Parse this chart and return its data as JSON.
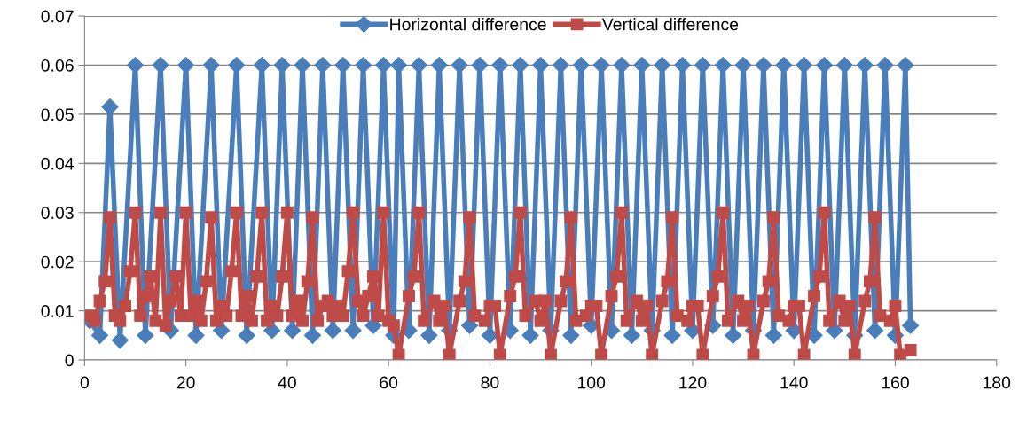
{
  "chart_data": {
    "type": "line",
    "xlim": [
      0,
      180
    ],
    "xticks": [
      0,
      20,
      40,
      60,
      80,
      100,
      120,
      140,
      160,
      180
    ],
    "ylim": [
      0,
      0.07
    ],
    "yticks": [
      0,
      0.01,
      0.02,
      0.03,
      0.04,
      0.05,
      0.06,
      0.07
    ],
    "grid": "y",
    "legend": "top",
    "line_style": "solid",
    "series": [
      {
        "name": "Horizontal difference",
        "color": "#4a7ebb",
        "marker": "diamond",
        "x": [
          1,
          3,
          5,
          7,
          10,
          12,
          15,
          17,
          20,
          22,
          25,
          27,
          30,
          32,
          35,
          37,
          39,
          41,
          43,
          45,
          47,
          49,
          51,
          53,
          55,
          57,
          59,
          61,
          62,
          64,
          66,
          68,
          70,
          72,
          74,
          76,
          78,
          80,
          82,
          84,
          86,
          88,
          90,
          92,
          94,
          96,
          98,
          100,
          102,
          104,
          106,
          108,
          110,
          112,
          114,
          116,
          118,
          120,
          122,
          124,
          126,
          128,
          130,
          132,
          134,
          136,
          138,
          140,
          142,
          144,
          146,
          148,
          150,
          152,
          154,
          156,
          158,
          160,
          162,
          163
        ],
        "values": [
          0.008,
          0.005,
          0.0515,
          0.004,
          0.06,
          0.005,
          0.06,
          0.006,
          0.06,
          0.005,
          0.06,
          0.006,
          0.06,
          0.005,
          0.06,
          0.006,
          0.06,
          0.006,
          0.06,
          0.005,
          0.06,
          0.006,
          0.06,
          0.006,
          0.06,
          0.007,
          0.06,
          0.005,
          0.06,
          0.006,
          0.06,
          0.005,
          0.06,
          0.006,
          0.06,
          0.007,
          0.06,
          0.005,
          0.06,
          0.006,
          0.06,
          0.005,
          0.06,
          0.006,
          0.06,
          0.005,
          0.06,
          0.007,
          0.06,
          0.006,
          0.06,
          0.005,
          0.06,
          0.006,
          0.06,
          0.005,
          0.06,
          0.006,
          0.06,
          0.007,
          0.06,
          0.005,
          0.06,
          0.006,
          0.06,
          0.005,
          0.06,
          0.006,
          0.06,
          0.005,
          0.06,
          0.006,
          0.06,
          0.005,
          0.06,
          0.006,
          0.06,
          0.005,
          0.06,
          0.007
        ]
      },
      {
        "name": "Vertical difference",
        "color": "#be4b48",
        "marker": "square",
        "x": [
          1,
          2,
          3,
          4,
          5,
          6,
          7,
          8,
          9,
          10,
          11,
          12,
          13,
          14,
          15,
          16,
          17,
          18,
          19,
          20,
          21,
          22,
          23,
          24,
          25,
          26,
          27,
          28,
          29,
          30,
          31,
          32,
          33,
          34,
          35,
          36,
          37,
          38,
          39,
          40,
          41,
          42,
          43,
          44,
          45,
          46,
          47,
          48,
          49,
          50,
          51,
          52,
          53,
          54,
          55,
          56,
          57,
          58,
          59,
          60,
          61,
          62,
          64,
          65,
          66,
          67,
          69,
          70,
          71,
          72,
          74,
          75,
          76,
          77,
          79,
          80,
          81,
          82,
          84,
          85,
          86,
          87,
          89,
          90,
          91,
          92,
          94,
          95,
          96,
          97,
          99,
          100,
          101,
          102,
          104,
          105,
          106,
          107,
          109,
          110,
          111,
          112,
          114,
          115,
          116,
          117,
          119,
          120,
          121,
          122,
          124,
          125,
          126,
          127,
          129,
          130,
          131,
          132,
          134,
          135,
          136,
          137,
          139,
          140,
          141,
          142,
          144,
          145,
          146,
          147,
          149,
          150,
          151,
          152,
          154,
          155,
          156,
          157,
          159,
          160,
          161,
          163
        ],
        "values": [
          0.009,
          0.008,
          0.012,
          0.016,
          0.029,
          0.009,
          0.008,
          0.011,
          0.018,
          0.03,
          0.009,
          0.013,
          0.017,
          0.008,
          0.03,
          0.007,
          0.012,
          0.017,
          0.009,
          0.03,
          0.009,
          0.012,
          0.008,
          0.016,
          0.029,
          0.008,
          0.011,
          0.009,
          0.018,
          0.03,
          0.009,
          0.013,
          0.008,
          0.017,
          0.03,
          0.008,
          0.011,
          0.009,
          0.017,
          0.03,
          0.009,
          0.012,
          0.008,
          0.016,
          0.029,
          0.008,
          0.011,
          0.012,
          0.009,
          0.011,
          0.009,
          0.018,
          0.03,
          0.012,
          0.009,
          0.013,
          0.017,
          0.009,
          0.03,
          0.008,
          0.007,
          0.001,
          0.013,
          0.017,
          0.03,
          0.008,
          0.012,
          0.008,
          0.011,
          0.001,
          0.012,
          0.016,
          0.029,
          0.009,
          0.008,
          0.011,
          0.011,
          0.001,
          0.013,
          0.017,
          0.03,
          0.009,
          0.012,
          0.008,
          0.012,
          0.001,
          0.012,
          0.016,
          0.029,
          0.008,
          0.009,
          0.011,
          0.011,
          0.001,
          0.013,
          0.017,
          0.03,
          0.008,
          0.012,
          0.008,
          0.011,
          0.001,
          0.012,
          0.016,
          0.029,
          0.009,
          0.008,
          0.011,
          0.011,
          0.001,
          0.013,
          0.017,
          0.03,
          0.008,
          0.012,
          0.008,
          0.011,
          0.001,
          0.012,
          0.016,
          0.029,
          0.009,
          0.008,
          0.011,
          0.011,
          0.001,
          0.013,
          0.017,
          0.03,
          0.008,
          0.012,
          0.008,
          0.011,
          0.001,
          0.012,
          0.016,
          0.029,
          0.009,
          0.008,
          0.011,
          0.001,
          0.002
        ]
      }
    ]
  }
}
